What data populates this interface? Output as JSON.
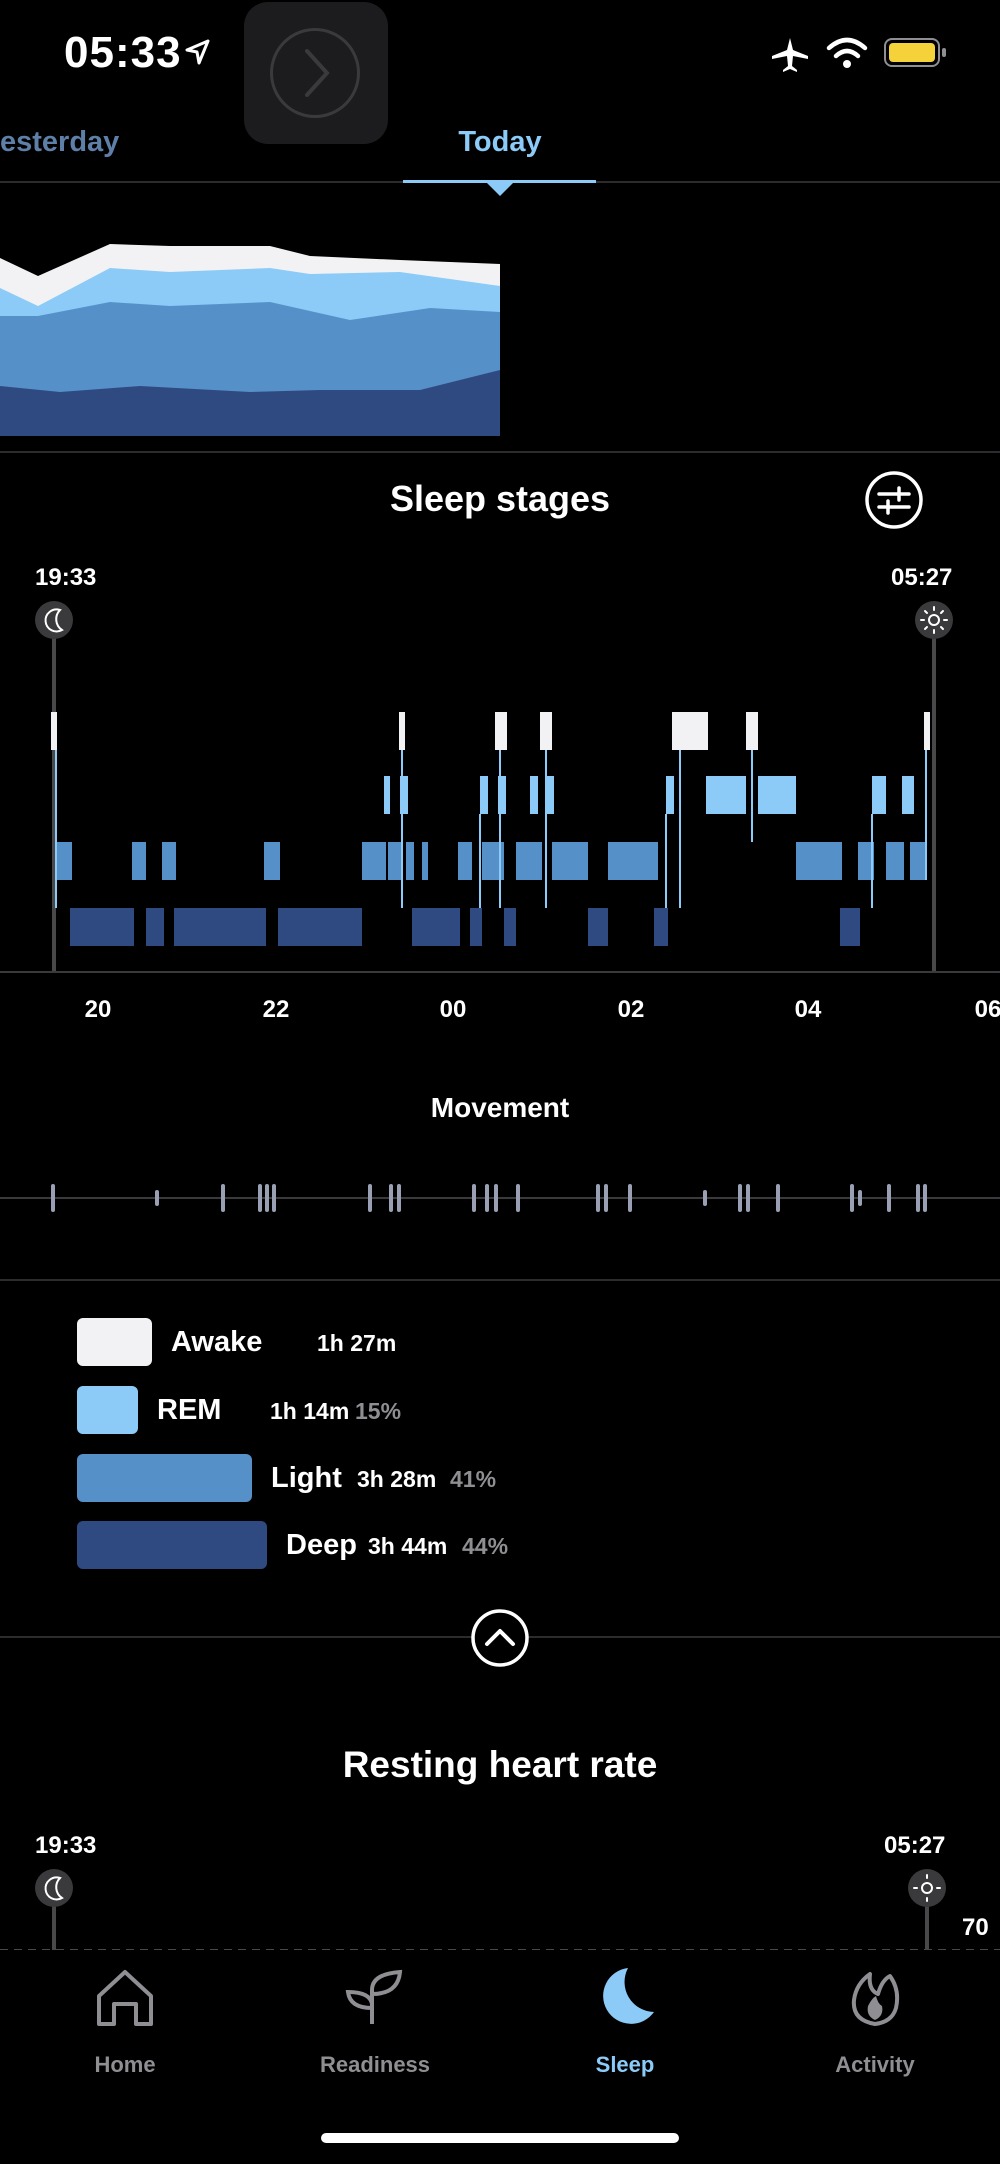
{
  "status_bar": {
    "time": "05:33"
  },
  "tabs": [
    {
      "label": "esterday"
    },
    {
      "label": "Today"
    }
  ],
  "sleep_stages": {
    "title": "Sleep stages",
    "start_time": "19:33",
    "end_time": "05:27",
    "hour_labels": [
      "20",
      "22",
      "00",
      "02",
      "04",
      "06"
    ]
  },
  "movement": {
    "title": "Movement"
  },
  "legend": [
    {
      "name": "Awake",
      "duration": "1h 27m",
      "percent": ""
    },
    {
      "name": "REM",
      "duration": "1h 14m",
      "percent": "15%"
    },
    {
      "name": "Light",
      "duration": "3h 28m",
      "percent": "41%"
    },
    {
      "name": "Deep",
      "duration": "3h 44m",
      "percent": "44%"
    }
  ],
  "resting_heart_rate": {
    "title": "Resting heart rate",
    "start_time": "19:33",
    "end_time": "05:27",
    "value_label": "70"
  },
  "bottom_nav": [
    {
      "label": "Home",
      "icon": "house-icon"
    },
    {
      "label": "Readiness",
      "icon": "sprout-icon"
    },
    {
      "label": "Sleep",
      "icon": "moon-icon"
    },
    {
      "label": "Activity",
      "icon": "flame-icon"
    }
  ],
  "colors": {
    "awake": "#f2f2f4",
    "rem": "#8ccbf7",
    "light": "#5690c8",
    "deep": "#2f4a80",
    "accent": "#8ccbf7"
  }
}
